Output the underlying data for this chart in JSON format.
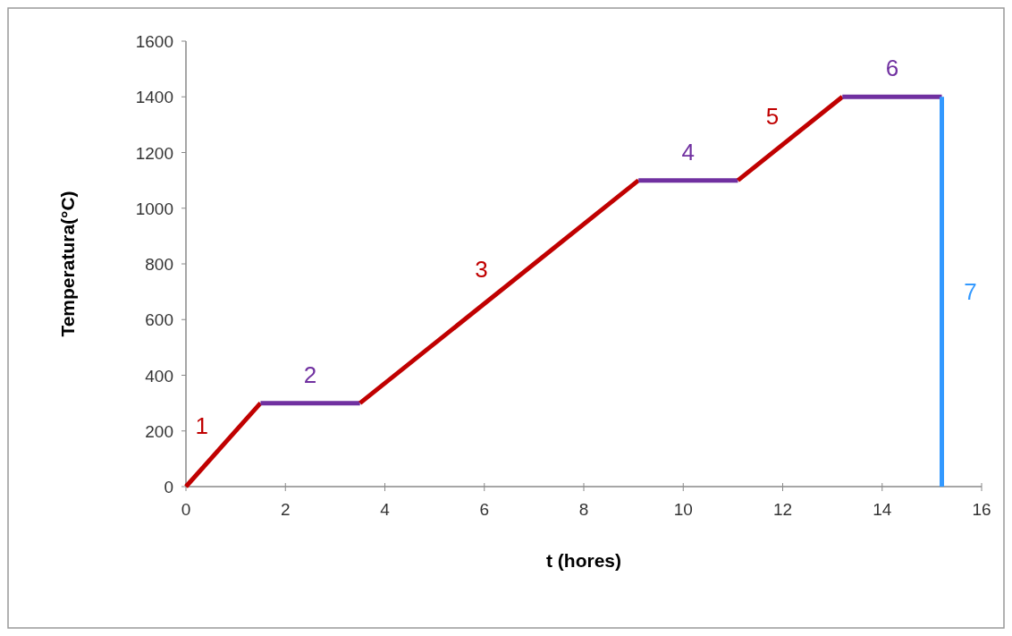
{
  "chart_data": {
    "type": "line",
    "xlabel": "t (hores)",
    "ylabel": "Temperatura(°C)",
    "xlim": [
      0,
      16
    ],
    "xticks": [
      0,
      2,
      4,
      6,
      8,
      10,
      12,
      14,
      16
    ],
    "ylim": [
      0,
      1600
    ],
    "yticks": [
      0,
      200,
      400,
      600,
      800,
      1000,
      1200,
      1400,
      1600
    ],
    "grid": false,
    "marker": "none",
    "line_style": "solid",
    "series": [
      {
        "color": "#c00000",
        "x": [
          0,
          1.5
        ],
        "values": [
          0,
          300
        ]
      },
      {
        "color": "#7030a0",
        "x": [
          1.5,
          3.5
        ],
        "values": [
          300,
          300
        ]
      },
      {
        "color": "#c00000",
        "x": [
          3.5,
          9.1
        ],
        "values": [
          300,
          1100
        ]
      },
      {
        "color": "#7030a0",
        "x": [
          9.1,
          11.1
        ],
        "values": [
          1100,
          1100
        ]
      },
      {
        "color": "#c00000",
        "x": [
          11.1,
          13.2
        ],
        "values": [
          1100,
          1400
        ]
      },
      {
        "color": "#7030a0",
        "x": [
          13.2,
          15.2
        ],
        "values": [
          1400,
          1400
        ]
      },
      {
        "color": "#3399ff",
        "x": [
          15.2,
          15.2
        ],
        "values": [
          1400,
          0
        ]
      }
    ],
    "annotations": [
      "1",
      "2",
      "3",
      "4",
      "5",
      "6",
      "7"
    ]
  }
}
